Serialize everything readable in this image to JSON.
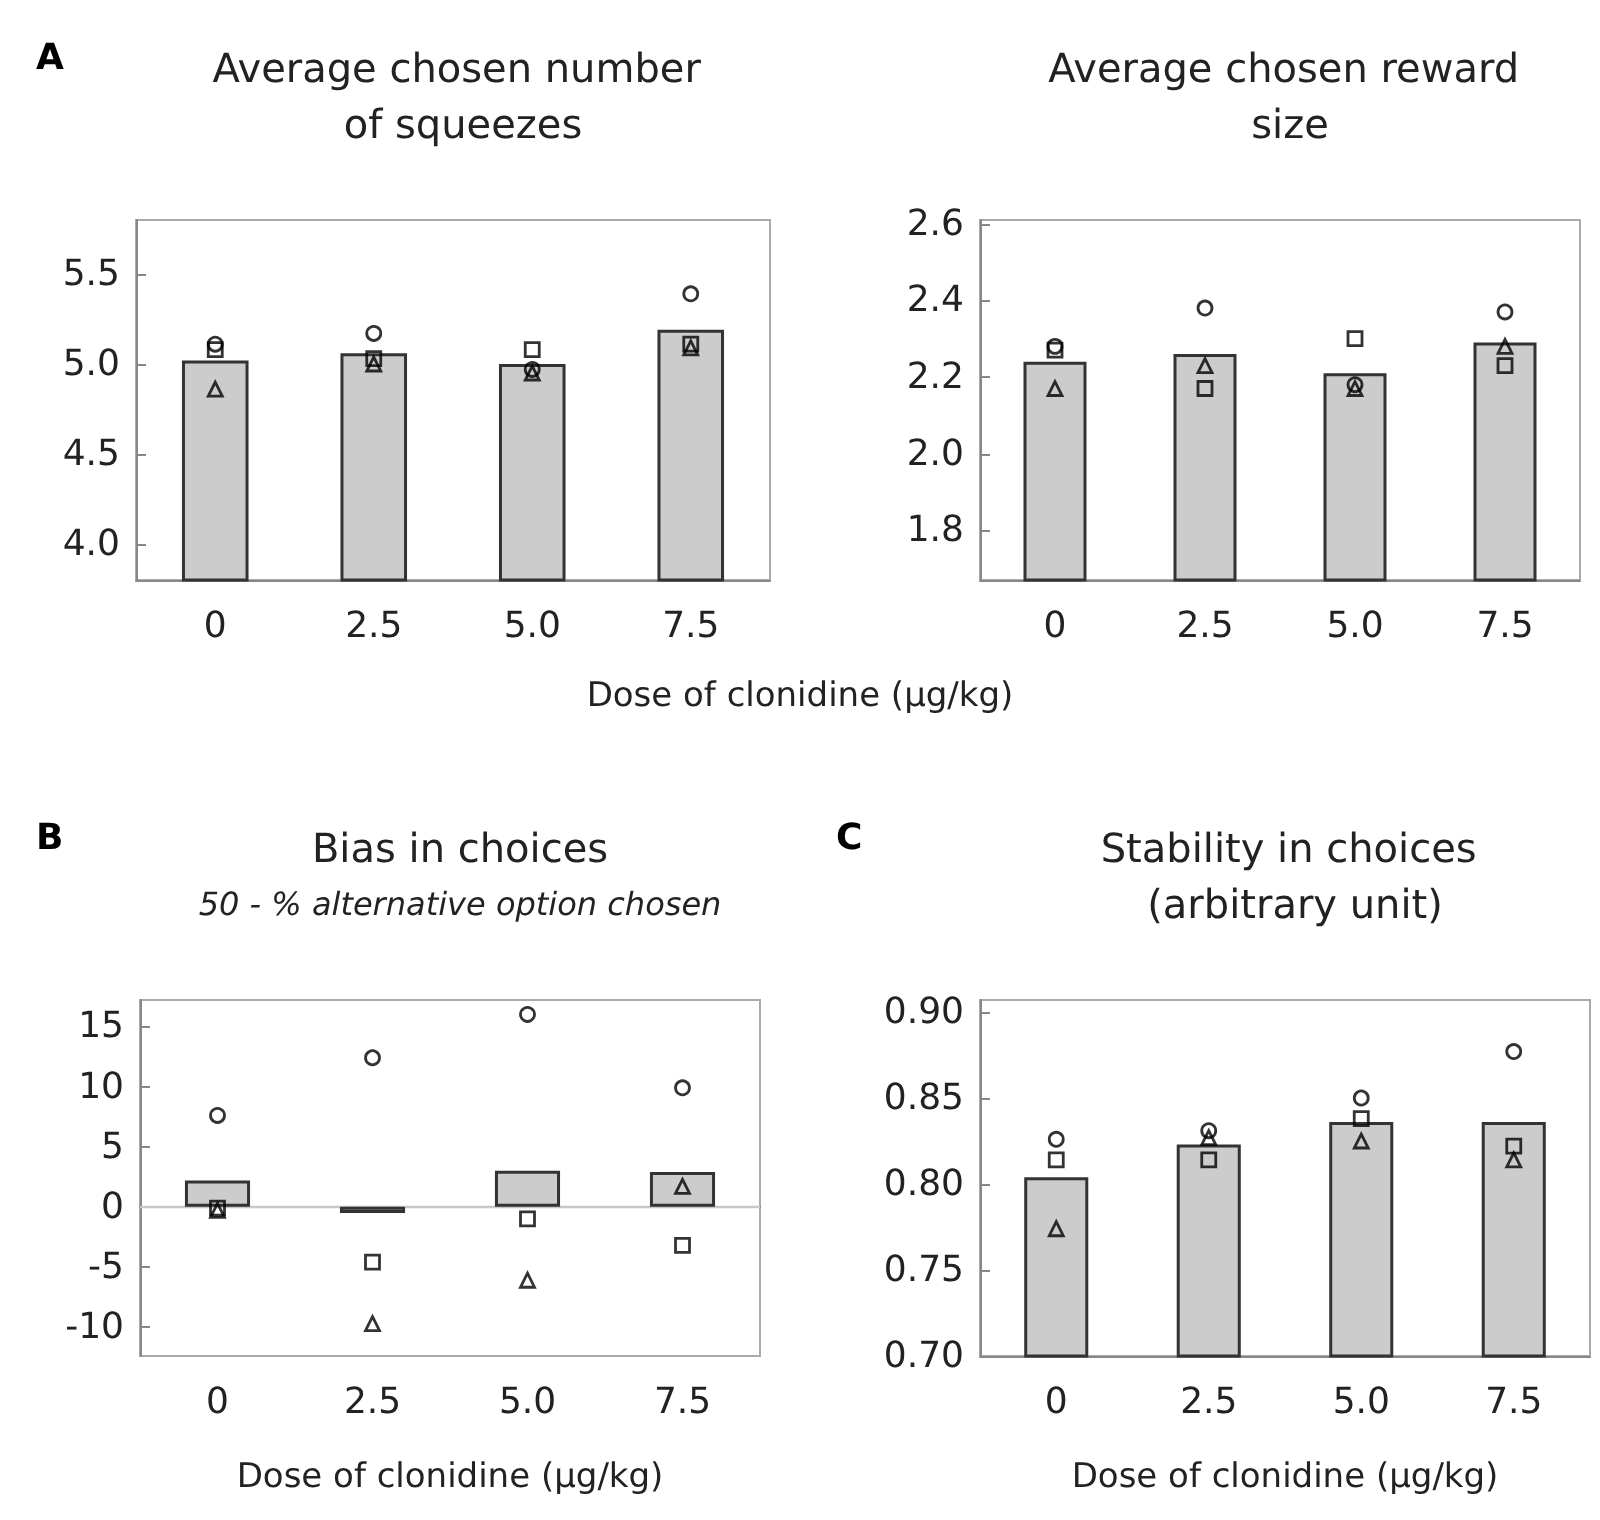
{
  "chart_data": [
    {
      "type": "bar",
      "title": "Average chosen number of squeezes",
      "xlabel": "Dose of clonidine (µg/kg)",
      "annotations": [
        "A"
      ],
      "categories": [
        "0",
        "2.5",
        "5.0",
        "7.5"
      ],
      "ylim": [
        3.8,
        5.8
      ],
      "yticks": [
        {
          "value": 4,
          "label": "4.0"
        },
        4.5,
        {
          "value": 5,
          "label": "5.0"
        },
        5.5
      ],
      "grid": false,
      "series": [
        {
          "color": "#cccccc",
          "values": [
            5.02,
            5.06,
            5.0,
            5.19
          ]
        },
        {
          "type": "scatter",
          "marker": "circle",
          "color": "#000000",
          "x": [
            "0",
            "2.5",
            "5.0",
            "7.5"
          ],
          "values": [
            5.11,
            5.17,
            4.97,
            5.39
          ]
        },
        {
          "type": "scatter",
          "marker": "square",
          "color": "#000000",
          "x": [
            "0",
            "2.5",
            "5.0",
            "7.5"
          ],
          "values": [
            5.08,
            5.03,
            5.08,
            5.11
          ]
        },
        {
          "type": "scatter",
          "marker": "triangle",
          "color": "#000000",
          "x": [
            "0",
            "2.5",
            "5.0",
            "7.5"
          ],
          "values": [
            4.86,
            5.0,
            4.95,
            5.09
          ]
        }
      ]
    },
    {
      "type": "bar",
      "title": "Average chosen reward size",
      "categories": [
        "0",
        "2.5",
        "5.0",
        "7.5"
      ],
      "ylim": [
        1.67,
        2.61
      ],
      "yticks": [
        1.8,
        {
          "value": 2,
          "label": "2.0"
        },
        2.2,
        2.4,
        2.6
      ],
      "grid": false,
      "series": [
        {
          "color": "#cccccc",
          "values": [
            2.24,
            2.26,
            2.21,
            2.29
          ]
        },
        {
          "type": "scatter",
          "marker": "circle",
          "color": "#000000",
          "x": [
            "0",
            "2.5",
            "5.0",
            "7.5"
          ],
          "values": [
            2.28,
            2.38,
            2.18,
            2.37
          ]
        },
        {
          "type": "scatter",
          "marker": "square",
          "color": "#000000",
          "x": [
            "0",
            "2.5",
            "5.0",
            "7.5"
          ],
          "values": [
            2.27,
            2.17,
            2.3,
            2.23
          ]
        },
        {
          "type": "scatter",
          "marker": "triangle",
          "color": "#000000",
          "x": [
            "0",
            "2.5",
            "5.0",
            "7.5"
          ],
          "values": [
            2.17,
            2.23,
            2.17,
            2.28
          ]
        }
      ]
    },
    {
      "type": "bar",
      "title": "Bias in choices",
      "subtitle": "50 - % alternative option chosen",
      "xlabel": "Dose of clonidine (µg/kg)",
      "annotations": [
        "B"
      ],
      "categories": [
        "0",
        "2.5",
        "5.0",
        "7.5"
      ],
      "ylim": [
        -12.4,
        17.2
      ],
      "yticks": [
        -10,
        -5,
        0,
        5,
        10,
        15
      ],
      "grid": false,
      "ref_lines": [
        {
          "axis": "y",
          "value": 0,
          "color": "#c8c8c8"
        }
      ],
      "series": [
        {
          "color": "#cccccc",
          "values": [
            2.2,
            -0.5,
            3.0,
            2.9
          ]
        },
        {
          "type": "scatter",
          "marker": "circle",
          "color": "#000000",
          "x": [
            "0",
            "2.5",
            "5.0",
            "7.5"
          ],
          "values": [
            7.6,
            12.4,
            16.0,
            9.9
          ]
        },
        {
          "type": "scatter",
          "marker": "square",
          "color": "#000000",
          "x": [
            "0",
            "2.5",
            "5.0",
            "7.5"
          ],
          "values": [
            -0.1,
            -4.6,
            -1.0,
            -3.2
          ]
        },
        {
          "type": "scatter",
          "marker": "triangle",
          "color": "#000000",
          "x": [
            "0",
            "2.5",
            "5.0",
            "7.5"
          ],
          "values": [
            -0.3,
            -9.7,
            -6.1,
            1.7
          ]
        }
      ]
    },
    {
      "type": "bar",
      "title": "Stability in choices (arbitrary unit)",
      "xlabel": "Dose of clonidine (µg/kg)",
      "annotations": [
        "C"
      ],
      "categories": [
        "0",
        "2.5",
        "5.0",
        "7.5"
      ],
      "ylim": [
        0.7,
        0.907
      ],
      "yticks": [
        {
          "value": 0.7,
          "label": "0.70"
        },
        0.75,
        {
          "value": 0.8,
          "label": "0.80"
        },
        0.85,
        {
          "value": 0.9,
          "label": "0.90"
        }
      ],
      "grid": false,
      "series": [
        {
          "color": "#cccccc",
          "values": [
            0.804,
            0.823,
            0.836,
            0.836
          ]
        },
        {
          "type": "scatter",
          "marker": "circle",
          "color": "#000000",
          "x": [
            "0",
            "2.5",
            "5.0",
            "7.5"
          ],
          "values": [
            0.826,
            0.831,
            0.85,
            0.877
          ]
        },
        {
          "type": "scatter",
          "marker": "square",
          "color": "#000000",
          "x": [
            "0",
            "2.5",
            "5.0",
            "7.5"
          ],
          "values": [
            0.814,
            0.814,
            0.838,
            0.822
          ]
        },
        {
          "type": "scatter",
          "marker": "triangle",
          "color": "#000000",
          "x": [
            "0",
            "2.5",
            "5.0",
            "7.5"
          ],
          "values": [
            0.774,
            0.827,
            0.825,
            0.814
          ]
        }
      ]
    }
  ]
}
